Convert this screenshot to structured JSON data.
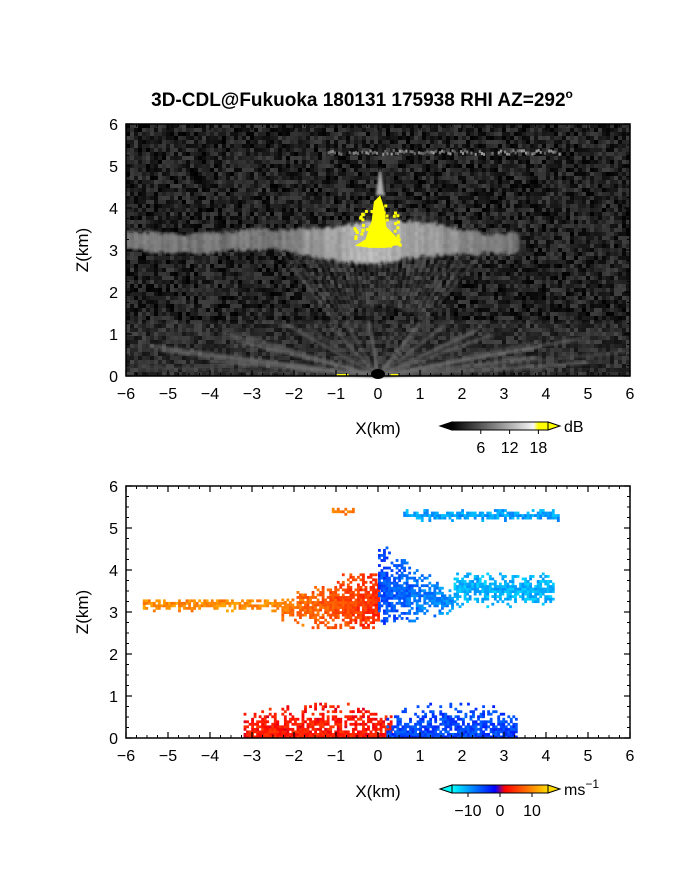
{
  "chart_data": [
    {
      "type": "heatmap",
      "title": "3D-CDL@Fukuoka 180131 175938 RHI AZ=292",
      "title_superscript": "o",
      "xlabel": "X(km)",
      "ylabel": "Z(km)",
      "xlim": [
        -6,
        6
      ],
      "ylim": [
        0,
        6
      ],
      "x_ticks": [
        "−6",
        "−5",
        "−4",
        "−3",
        "−2",
        "−1",
        "0",
        "1",
        "2",
        "3",
        "4",
        "5",
        "6"
      ],
      "y_ticks": [
        "0",
        "1",
        "2",
        "3",
        "4",
        "5",
        "6"
      ],
      "grid": false,
      "colormap": "grayscale-to-yellow",
      "colorbar": {
        "unit": "dB",
        "ticks": [
          "6",
          "12",
          "18"
        ],
        "tick_values": [
          6,
          12,
          18
        ],
        "range": [
          0,
          20
        ],
        "colors": [
          "#000000",
          "#ffffff",
          "#ffff00"
        ]
      },
      "features": [
        {
          "name": "layer",
          "z": [
            3.0,
            3.45
          ],
          "x": [
            -6,
            3.3
          ],
          "level": 8
        },
        {
          "name": "high layer",
          "z": [
            5.2,
            5.4
          ],
          "x": [
            -1.2,
            4.3
          ],
          "level": 6
        },
        {
          "name": "plume",
          "x": [
            -0.6,
            0.5
          ],
          "z": [
            3.1,
            4.3
          ],
          "level": 19
        },
        {
          "name": "spike",
          "x": [
            -0.05,
            0.15
          ],
          "z": [
            4.3,
            5.0
          ],
          "level": 12
        },
        {
          "name": "boundary layer",
          "x": [
            -6,
            6
          ],
          "z": [
            0,
            1.3
          ],
          "level": 5
        }
      ]
    },
    {
      "type": "heatmap",
      "xlabel": "X(km)",
      "ylabel": "Z(km)",
      "xlim": [
        -6,
        6
      ],
      "ylim": [
        0,
        6
      ],
      "x_ticks": [
        "−6",
        "−5",
        "−4",
        "−3",
        "−2",
        "−1",
        "0",
        "1",
        "2",
        "3",
        "4",
        "5",
        "6"
      ],
      "y_ticks": [
        "0",
        "1",
        "2",
        "3",
        "4",
        "5",
        "6"
      ],
      "grid": false,
      "colormap": "blue-cyan-red-yellow",
      "colorbar": {
        "unit": "ms",
        "unit_superscript": "−1",
        "ticks": [
          "−10",
          "0",
          "10"
        ],
        "tick_values": [
          -10,
          0,
          10
        ],
        "range": [
          -15,
          15
        ],
        "colors": [
          "#00ffff",
          "#0000ff",
          "#ff0000",
          "#ffff00"
        ]
      },
      "features": [
        {
          "name": "orange tail",
          "x": [
            -5.6,
            -2.3
          ],
          "z": [
            3.0,
            3.3
          ],
          "velocity": 10
        },
        {
          "name": "red core",
          "x": [
            -2.3,
            0.0
          ],
          "z": [
            2.6,
            3.9
          ],
          "velocity": 4
        },
        {
          "name": "blue core",
          "x": [
            0.0,
            1.8
          ],
          "z": [
            2.7,
            4.9
          ],
          "velocity": -5
        },
        {
          "name": "light blue tail",
          "x": [
            1.8,
            4.2
          ],
          "z": [
            3.1,
            3.9
          ],
          "velocity": -11
        },
        {
          "name": "high layer",
          "x": [
            0.6,
            4.3
          ],
          "z": [
            5.15,
            5.4
          ],
          "velocity": -10
        },
        {
          "name": "high orange fragment",
          "x": [
            -1.1,
            -0.6
          ],
          "z": [
            5.3,
            5.45
          ],
          "velocity": 9
        },
        {
          "name": "low red",
          "x": [
            -3.2,
            0.3
          ],
          "z": [
            0.0,
            1.1
          ],
          "velocity": 3
        },
        {
          "name": "low blue",
          "x": [
            0.2,
            3.3
          ],
          "z": [
            0.0,
            1.0
          ],
          "velocity": -5
        }
      ]
    }
  ]
}
